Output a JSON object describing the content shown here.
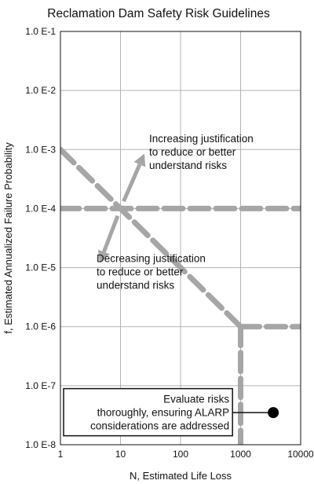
{
  "chart_data": {
    "type": "line",
    "title": "Reclamation Dam Safety Risk Guidelines",
    "xlabel": "N, Estimated Life Loss",
    "ylabel": "f, Estimated Annualized Failure Probability",
    "x_scale": "log",
    "y_scale": "log",
    "xlim": [
      1,
      10000
    ],
    "ylim": [
      1e-08,
      0.1
    ],
    "x_ticks": [
      {
        "value": 1,
        "label": "1"
      },
      {
        "value": 10,
        "label": "10"
      },
      {
        "value": 100,
        "label": "100"
      },
      {
        "value": 1000,
        "label": "1000"
      },
      {
        "value": 10000,
        "label": "10000"
      }
    ],
    "y_ticks": [
      {
        "value": 0.1,
        "label": "1.0 E-1"
      },
      {
        "value": 0.01,
        "label": "1.0 E-2"
      },
      {
        "value": 0.001,
        "label": "1.0 E-3"
      },
      {
        "value": 0.0001,
        "label": "1.0 E-4"
      },
      {
        "value": 1e-05,
        "label": "1.0 E-5"
      },
      {
        "value": 1e-06,
        "label": "1.0 E-6"
      },
      {
        "value": 1e-07,
        "label": "1.0 E-7"
      },
      {
        "value": 1e-08,
        "label": "1.0 E-8"
      }
    ],
    "grid": true,
    "guideline_color": "#a6a6a6",
    "series": [
      {
        "points": [
          [
            1,
            0.0001
          ],
          [
            10000,
            0.0001
          ]
        ]
      },
      {
        "points": [
          [
            1,
            0.001
          ],
          [
            1000,
            1e-06
          ]
        ]
      },
      {
        "points": [
          [
            1000,
            1e-06
          ],
          [
            10000,
            1e-06
          ]
        ]
      },
      {
        "points": [
          [
            1000,
            1e-06
          ],
          [
            1000,
            1e-08
          ]
        ]
      }
    ],
    "arrows": [
      {
        "from": [
          10,
          0.0001
        ],
        "to": [
          25,
          0.00085
        ]
      },
      {
        "from": [
          10,
          0.0001
        ],
        "to": [
          4.5,
          1.2e-05
        ]
      }
    ],
    "annotations": [
      {
        "lines": [
          "Increasing justification",
          "to reduce or better",
          "understand risks"
        ],
        "x": 30,
        "y": 0.0009,
        "align": "start"
      },
      {
        "lines": [
          "Decreasing justification",
          "to reduce or better",
          "understand risks"
        ],
        "x": 4,
        "y": 8.5e-06,
        "align": "start"
      },
      {
        "lines": [
          "Evaluate risks",
          "thoroughly, ensuring ALARP",
          "considerations are addressed"
        ],
        "x": 650,
        "y": 3.5e-08,
        "align": "end",
        "boxed": true
      }
    ],
    "marker": {
      "x": 3500,
      "y": 3.5e-08,
      "color": "#000000"
    }
  }
}
